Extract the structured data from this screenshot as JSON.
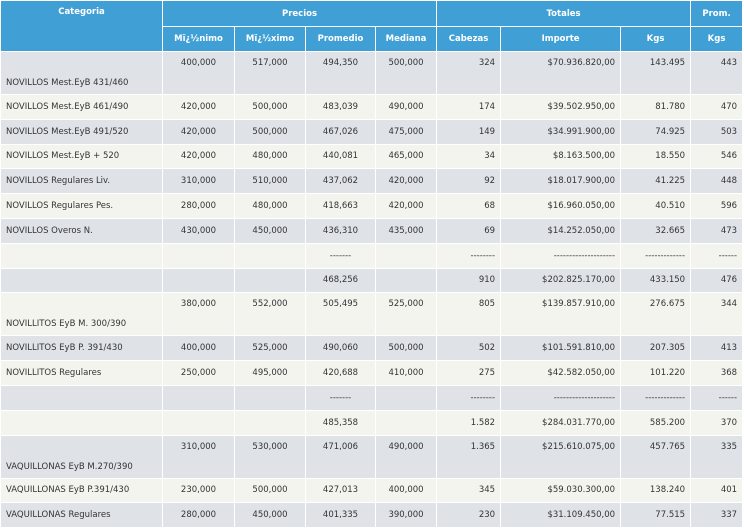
{
  "table": {
    "header_groups": [
      "Categoria",
      "Precios",
      "Totales",
      "Prom."
    ],
    "headers": [
      "Mï¿½nimo",
      "Mï¿½ximo",
      "Promedio",
      "Mediana",
      "Cabezas",
      "Importe",
      "Kgs",
      "Kgs"
    ],
    "rows": [
      [
        "NOVILLOS Mest.EyB 431/460",
        "400,000",
        "517,000",
        "494,350",
        "500,000",
        "324",
        "$70.936.820,00",
        "143.495",
        "443"
      ],
      [
        "NOVILLOS Mest.EyB 461/490",
        "420,000",
        "500,000",
        "483,039",
        "490,000",
        "174",
        "$39.502.950,00",
        "81.780",
        "470"
      ],
      [
        "NOVILLOS Mest.EyB 491/520",
        "420,000",
        "500,000",
        "467,026",
        "475,000",
        "149",
        "$34.991.900,00",
        "74.925",
        "503"
      ],
      [
        "NOVILLOS Mest.EyB + 520",
        "420,000",
        "480,000",
        "440,081",
        "465,000",
        "34",
        "$8.163.500,00",
        "18.550",
        "546"
      ],
      [
        "NOVILLOS Regulares Liv.",
        "310,000",
        "510,000",
        "437,062",
        "420,000",
        "92",
        "$18.017.900,00",
        "41.225",
        "448"
      ],
      [
        "NOVILLOS Regulares Pes.",
        "280,000",
        "480,000",
        "418,663",
        "420,000",
        "68",
        "$16.960.050,00",
        "40.510",
        "596"
      ],
      [
        "NOVILLOS Overos N.",
        "430,000",
        "450,000",
        "436,310",
        "435,000",
        "69",
        "$14.252.050,00",
        "32.665",
        "473"
      ],
      [
        null,
        null,
        null,
        "-------",
        null,
        "--------",
        "--------------------",
        "-------------",
        "------"
      ],
      [
        null,
        null,
        null,
        "468,256",
        null,
        "910",
        "$202.825.170,00",
        "433.150",
        "476"
      ],
      [
        "NOVILLITOS EyB M. 300/390",
        "380,000",
        "552,000",
        "505,495",
        "525,000",
        "805",
        "$139.857.910,00",
        "276.675",
        "344"
      ],
      [
        "NOVILLITOS EyB P. 391/430",
        "400,000",
        "525,000",
        "490,060",
        "500,000",
        "502",
        "$101.591.810,00",
        "207.305",
        "413"
      ],
      [
        "NOVILLITOS Regulares",
        "250,000",
        "495,000",
        "420,688",
        "410,000",
        "275",
        "$42.582.050,00",
        "101.220",
        "368"
      ],
      [
        null,
        null,
        null,
        "-------",
        null,
        "--------",
        "--------------------",
        "-------------",
        "------"
      ],
      [
        null,
        null,
        null,
        "485,358",
        null,
        "1.582",
        "$284.031.770,00",
        "585.200",
        "370"
      ],
      [
        "VAQUILLONAS EyB M.270/390",
        "310,000",
        "530,000",
        "471,006",
        "490,000",
        "1.365",
        "$215.610.075,00",
        "457.765",
        "335"
      ],
      [
        "VAQUILLONAS EyB P.391/430",
        "230,000",
        "500,000",
        "427,013",
        "400,000",
        "345",
        "$59.030.300,00",
        "138.240",
        "401"
      ],
      [
        "VAQUILLONAS Regulares",
        "280,000",
        "450,000",
        "401,335",
        "390,000",
        "230",
        "$31.109.450,00",
        "77.515",
        "337"
      ]
    ]
  }
}
